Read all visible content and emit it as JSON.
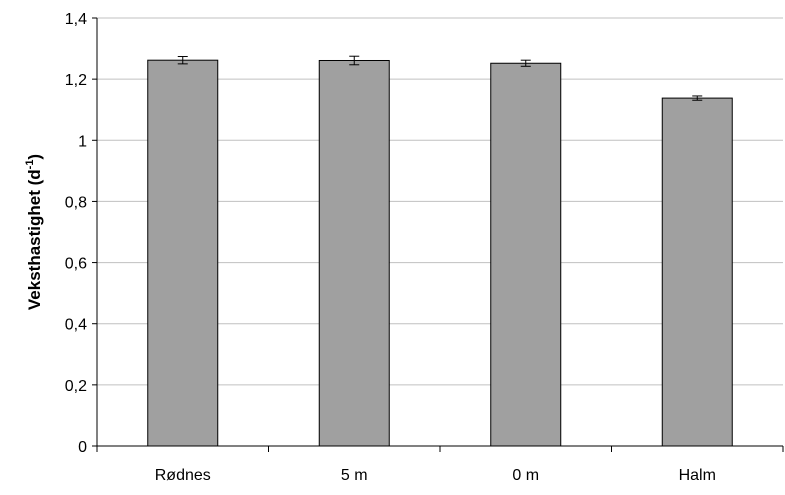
{
  "chart_data": {
    "type": "bar",
    "title": "",
    "xlabel": "",
    "ylabel": {
      "prefix": "Veksthastighet (d",
      "superscript": "-1",
      "suffix": ")"
    },
    "categories": [
      "Rødnes",
      "5 m",
      "0 m",
      "Halm"
    ],
    "values": [
      1.262,
      1.261,
      1.252,
      1.138
    ],
    "errors": [
      0.012,
      0.014,
      0.01,
      0.007
    ],
    "ylim": [
      0,
      1.4
    ],
    "yticks": [
      0,
      0.2,
      0.4,
      0.6,
      0.8,
      1,
      1.2,
      1.4
    ],
    "ytick_labels": [
      "0",
      "0,2",
      "0,4",
      "0,6",
      "0,8",
      "1",
      "1,2",
      "1,4"
    ],
    "grid": true,
    "legend": "none",
    "colors": {
      "bar_fill": "#a0a0a0",
      "bar_stroke": "#000000",
      "grid": "#c0c0c0",
      "axis": "#000000"
    }
  }
}
